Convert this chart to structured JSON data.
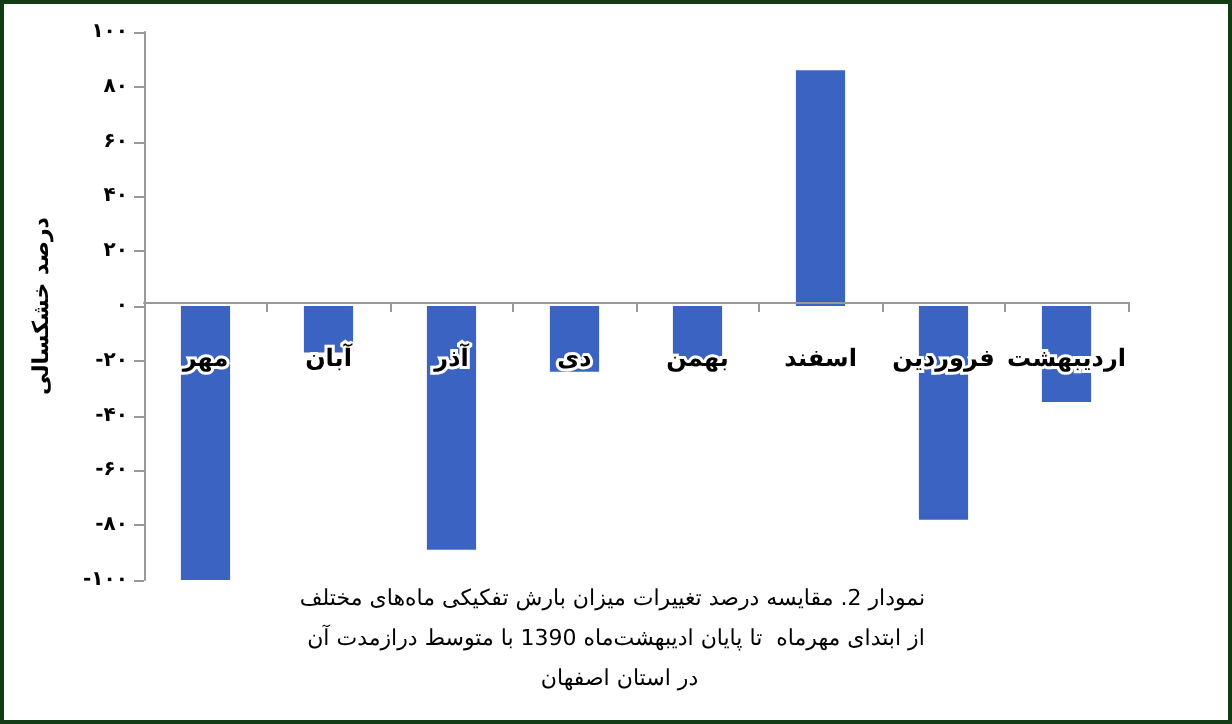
{
  "chart_data": {
    "type": "bar",
    "title": "نمودار 2. مقایسه درصد تغییرات میزان بارش تفکیکی ماه‌های مختلف از ابتدای مهرماه  تا پایان ادیبهشت‌ماه 1390 با متوسط درازمدت آن در استان اصفهان",
    "ylabel": "درصد خشکسالی",
    "categories": [
      "مهر",
      "آبان",
      "آذر",
      "دی",
      "بهمن",
      "اسفند",
      "فروردین",
      "اردیبهشت"
    ],
    "values": [
      -100,
      -17,
      -89,
      -24,
      -20,
      86,
      -78,
      -35
    ],
    "color": "#3b63c2",
    "ylim": [
      -100,
      100
    ],
    "yticks": [
      {
        "value": -100,
        "label": "-۱۰۰"
      },
      {
        "value": -80,
        "label": "-۸۰"
      },
      {
        "value": -60,
        "label": "-۶۰"
      },
      {
        "value": -40,
        "label": "-۴۰"
      },
      {
        "value": -20,
        "label": "-۲۰"
      },
      {
        "value": 0,
        "label": "۰"
      },
      {
        "value": 20,
        "label": "۲۰"
      },
      {
        "value": 40,
        "label": "۴۰"
      },
      {
        "value": 60,
        "label": "۶۰"
      },
      {
        "value": 80,
        "label": "۸۰"
      },
      {
        "value": 100,
        "label": "۱۰۰"
      }
    ],
    "grid": false
  }
}
